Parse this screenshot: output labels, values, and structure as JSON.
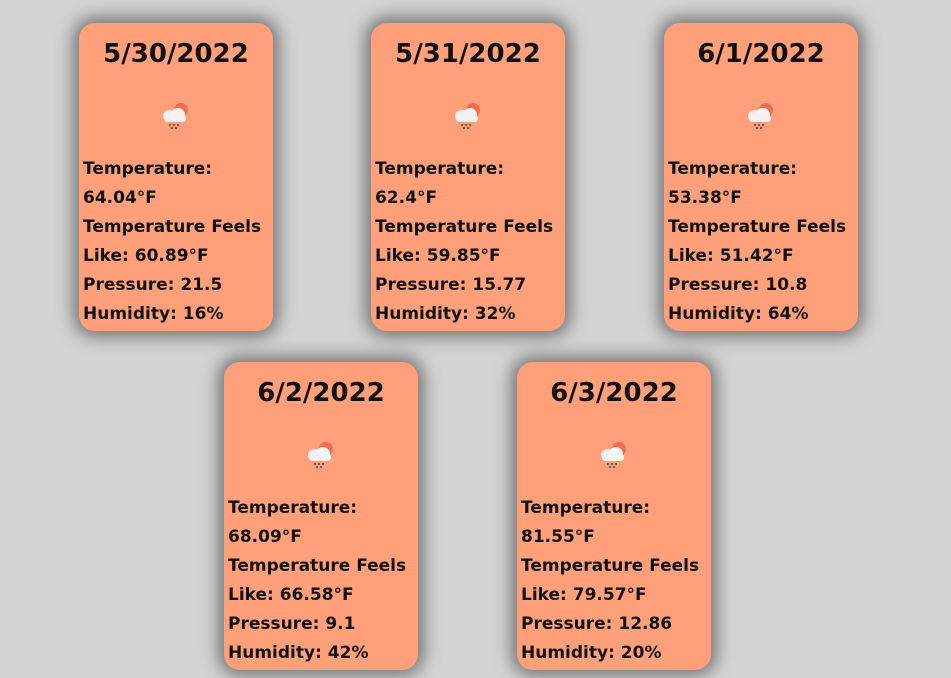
{
  "labels": {
    "temperature": "Temperature:",
    "feels_like_1": "Temperature Feels",
    "feels_like_2": "Like:",
    "pressure": "Pressure:",
    "humidity": "Humidity:"
  },
  "icon": "cloud-rain-sun-icon",
  "colors": {
    "background": "#d3d3d3",
    "card": "#ffa07a"
  },
  "forecast": [
    {
      "date": "5/30/2022",
      "temperature": "64.04°F",
      "feels_like": "60.89°F",
      "pressure": "21.5",
      "humidity": "16%"
    },
    {
      "date": "5/31/2022",
      "temperature": "62.4°F",
      "feels_like": "59.85°F",
      "pressure": "15.77",
      "humidity": "32%"
    },
    {
      "date": "6/1/2022",
      "temperature": "53.38°F",
      "feels_like": "51.42°F",
      "pressure": "10.8",
      "humidity": "64%"
    },
    {
      "date": "6/2/2022",
      "temperature": "68.09°F",
      "feels_like": "66.58°F",
      "pressure": "9.1",
      "humidity": "42%"
    },
    {
      "date": "6/3/2022",
      "temperature": "81.55°F",
      "feels_like": "79.57°F",
      "pressure": "12.86",
      "humidity": "20%"
    }
  ]
}
